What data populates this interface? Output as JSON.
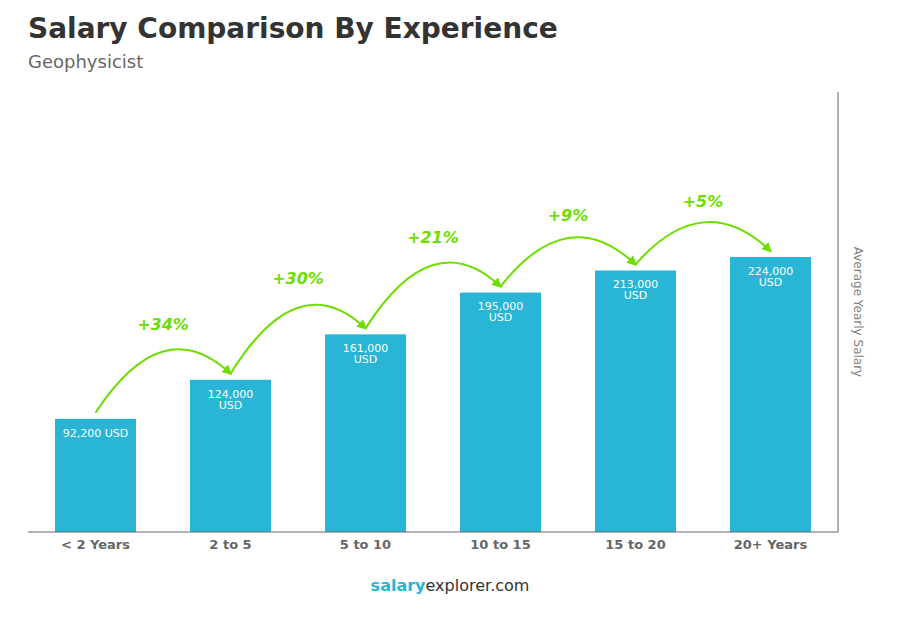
{
  "chart_data": {
    "type": "bar",
    "title": "Salary Comparison By Experience",
    "subtitle": "Geophysicist",
    "categories": [
      "< 2 Years",
      "2 to 5",
      "5 to 10",
      "10 to 15",
      "15 to 20",
      "20+ Years"
    ],
    "values": [
      92200,
      124000,
      161000,
      195000,
      213000,
      224000
    ],
    "value_labels": [
      "92,200 USD",
      "124,000 USD",
      "161,000 USD",
      "195,000 USD",
      "213,000 USD",
      "224,000 USD"
    ],
    "color": "#29b5d5",
    "ylabel": "Average Yearly Salary",
    "ylim": [
      0,
      358400
    ],
    "tick_labels": "x",
    "annotations": [
      {
        "text": "+34%",
        "color": "#6ddd00"
      },
      {
        "text": "+30%",
        "color": "#6ddd00"
      },
      {
        "text": "+21%",
        "color": "#6ddd00"
      },
      {
        "text": "+9%",
        "color": "#6ddd00"
      },
      {
        "text": "+5%",
        "color": "#6ddd00"
      }
    ],
    "footer": [
      {
        "text": "salary",
        "color": "#29b5d5"
      },
      {
        "text": "explorer.com"
      }
    ]
  }
}
